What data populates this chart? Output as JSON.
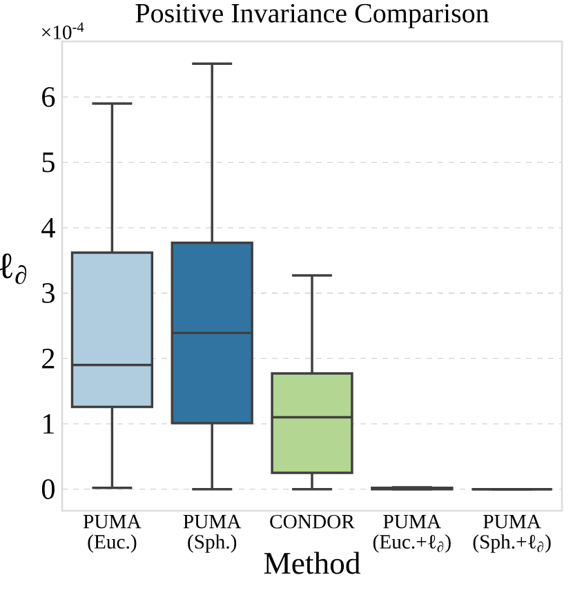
{
  "chart_data": {
    "type": "box",
    "title": "Positive Invariance Comparison",
    "xlabel": "Method",
    "ylabel": "ℓ$_{∂}$",
    "categories": [
      "PUMA (Euc.)",
      "PUMA (Sph.)",
      "CONDOR",
      "PUMA (Euc.+ℓ$_{∂}$)",
      "PUMA (Sph.+ℓ$_{∂}$)"
    ],
    "boxes": [
      {
        "low": 0.02,
        "q1": 1.26,
        "median": 1.9,
        "q3": 3.62,
        "high": 5.9
      },
      {
        "low": 0,
        "q1": 1.01,
        "median": 2.39,
        "q3": 3.77,
        "high": 6.51
      },
      {
        "low": 0,
        "q1": 0.25,
        "median": 1.1,
        "q3": 1.77,
        "high": 3.27
      },
      {
        "low": 0,
        "q1": 0,
        "median": 0.01,
        "q3": 0.02,
        "high": 0.03
      },
      {
        "low": 0,
        "q1": 0,
        "median": 0,
        "q3": 0,
        "high": 0
      }
    ],
    "colors": [
      "#b0cde0",
      "#3274a1",
      "#b3d693",
      "#5d9f4d",
      "#3f3f3f"
    ],
    "ylim": [
      -0.33,
      6.85
    ],
    "yticks": [
      0,
      1,
      2,
      3,
      4,
      5,
      6
    ],
    "grid": "y",
    "annotations": [
      "×10$^{-4}$"
    ]
  }
}
